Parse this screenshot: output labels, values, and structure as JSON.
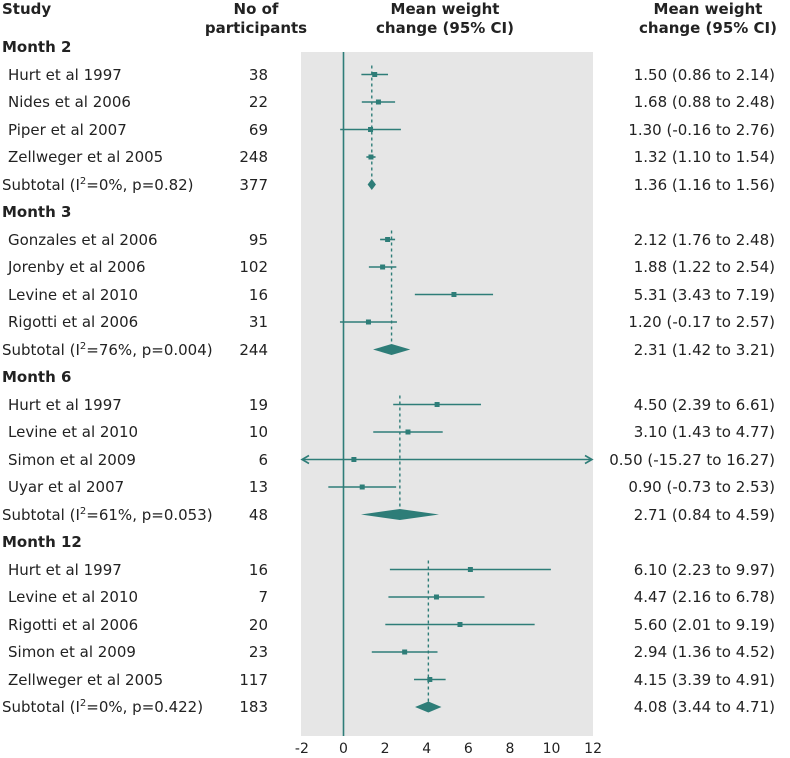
{
  "headers": {
    "study": "Study",
    "participants_line1": "No of",
    "participants_line2": "participants",
    "plot_line1": "Mean weight",
    "plot_line2": "change (95% CI)",
    "ci_line1": "Mean weight",
    "ci_line2": "change (95% CI)"
  },
  "colors": {
    "accent": "#2e7d78",
    "panel": "#e6e6e6"
  },
  "chart_data": {
    "type": "forest",
    "title": "",
    "xlabel": "Mean weight change (95% CI)",
    "xlim": [
      -2,
      12
    ],
    "ticks": [
      "-2",
      "0",
      "2",
      "4",
      "6",
      "8",
      "10",
      "12"
    ],
    "tick_values": [
      -2,
      0,
      2,
      4,
      6,
      8,
      10,
      12
    ],
    "reference_line": 0,
    "groups": [
      {
        "name": "Month 2",
        "studies": [
          {
            "study": "Hurt et al 1997",
            "n": "38",
            "ci_text": "1.50 (0.86 to 2.14)",
            "mean": 1.5,
            "low": 0.86,
            "high": 2.14
          },
          {
            "study": "Nides et al 2006",
            "n": "22",
            "ci_text": "1.68 (0.88 to 2.48)",
            "mean": 1.68,
            "low": 0.88,
            "high": 2.48
          },
          {
            "study": "Piper et al 2007",
            "n": "69",
            "ci_text": "1.30 (-0.16 to 2.76)",
            "mean": 1.3,
            "low": -0.16,
            "high": 2.76
          },
          {
            "study": "Zellweger et al 2005",
            "n": "248",
            "ci_text": "1.32 (1.10 to 1.54)",
            "mean": 1.32,
            "low": 1.1,
            "high": 1.54
          }
        ],
        "subtotal": {
          "label_pre": "Subtotal (I",
          "sup": "2",
          "label_post": "=0%, p=0.82)",
          "n": "377",
          "ci_text": "1.36 (1.16 to 1.56)",
          "mean": 1.36,
          "low": 1.16,
          "high": 1.56
        }
      },
      {
        "name": "Month 3",
        "studies": [
          {
            "study": "Gonzales et al 2006",
            "n": "95",
            "ci_text": "2.12 (1.76 to 2.48)",
            "mean": 2.12,
            "low": 1.76,
            "high": 2.48
          },
          {
            "study": "Jorenby et al 2006",
            "n": "102",
            "ci_text": "1.88 (1.22 to 2.54)",
            "mean": 1.88,
            "low": 1.22,
            "high": 2.54
          },
          {
            "study": "Levine et al 2010",
            "n": "16",
            "ci_text": "5.31 (3.43 to 7.19)",
            "mean": 5.31,
            "low": 3.43,
            "high": 7.19
          },
          {
            "study": "Rigotti et al 2006",
            "n": "31",
            "ci_text": "1.20 (-0.17 to 2.57)",
            "mean": 1.2,
            "low": -0.17,
            "high": 2.57
          }
        ],
        "subtotal": {
          "label_pre": "Subtotal (I",
          "sup": "2",
          "label_post": "=76%, p=0.004)",
          "n": "244",
          "ci_text": "2.31 (1.42 to 3.21)",
          "mean": 2.31,
          "low": 1.42,
          "high": 3.21
        }
      },
      {
        "name": "Month 6",
        "studies": [
          {
            "study": "Hurt et al 1997",
            "n": "19",
            "ci_text": "4.50 (2.39 to 6.61)",
            "mean": 4.5,
            "low": 2.39,
            "high": 6.61
          },
          {
            "study": "Levine et al 2010",
            "n": "10",
            "ci_text": "3.10 (1.43 to 4.77)",
            "mean": 3.1,
            "low": 1.43,
            "high": 4.77
          },
          {
            "study": "Simon et al 2009",
            "n": "6",
            "ci_text": "0.50 (-15.27 to 16.27)",
            "mean": 0.5,
            "low": -15.27,
            "high": 16.27
          },
          {
            "study": "Uyar et al 2007",
            "n": "13",
            "ci_text": "0.90 (-0.73 to 2.53)",
            "mean": 0.9,
            "low": -0.73,
            "high": 2.53
          }
        ],
        "subtotal": {
          "label_pre": "Subtotal (I",
          "sup": "2",
          "label_post": "=61%, p=0.053)",
          "n": "48",
          "ci_text": "2.71 (0.84 to 4.59)",
          "mean": 2.71,
          "low": 0.84,
          "high": 4.59
        }
      },
      {
        "name": "Month 12",
        "studies": [
          {
            "study": "Hurt et al 1997",
            "n": "16",
            "ci_text": "6.10 (2.23 to 9.97)",
            "mean": 6.1,
            "low": 2.23,
            "high": 9.97
          },
          {
            "study": "Levine et al 2010",
            "n": "7",
            "ci_text": "4.47 (2.16 to 6.78)",
            "mean": 4.47,
            "low": 2.16,
            "high": 6.78
          },
          {
            "study": "Rigotti et al 2006",
            "n": "20",
            "ci_text": "5.60 (2.01 to 9.19)",
            "mean": 5.6,
            "low": 2.01,
            "high": 9.19
          },
          {
            "study": "Simon et al 2009",
            "n": "23",
            "ci_text": "2.94 (1.36 to 4.52)",
            "mean": 2.94,
            "low": 1.36,
            "high": 4.52
          },
          {
            "study": "Zellweger et al 2005",
            "n": "117",
            "ci_text": "4.15 (3.39 to 4.91)",
            "mean": 4.15,
            "low": 3.39,
            "high": 4.91
          }
        ],
        "subtotal": {
          "label_pre": "Subtotal (I",
          "sup": "2",
          "label_post": "=0%, p=0.422)",
          "n": "183",
          "ci_text": "4.08 (3.44 to 4.71)",
          "mean": 4.08,
          "low": 3.44,
          "high": 4.71
        }
      }
    ]
  }
}
